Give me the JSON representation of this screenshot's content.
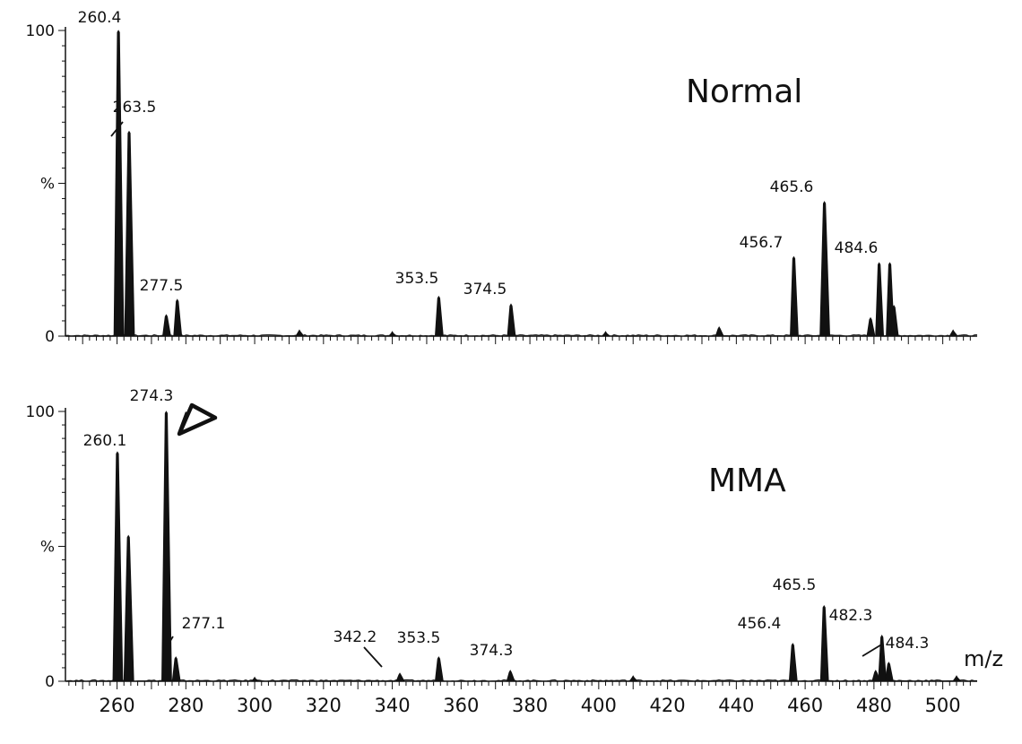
{
  "chart_data": [
    {
      "type": "mass-spectrum",
      "title": "Normal",
      "xlabel": "",
      "ylabel": "%",
      "yticks": [
        "0",
        "%",
        "100"
      ],
      "xlim": [
        245,
        510
      ],
      "ylim": [
        0,
        100
      ],
      "peaks": [
        {
          "mz": 260.4,
          "intensity": 100,
          "label": "260.4"
        },
        {
          "mz": 263.5,
          "intensity": 67,
          "label": "263.5"
        },
        {
          "mz": 274.3,
          "intensity": 7,
          "label": ""
        },
        {
          "mz": 277.5,
          "intensity": 12,
          "label": "277.5"
        },
        {
          "mz": 313.0,
          "intensity": 2,
          "label": ""
        },
        {
          "mz": 340.0,
          "intensity": 1.5,
          "label": ""
        },
        {
          "mz": 353.5,
          "intensity": 13,
          "label": "353.5"
        },
        {
          "mz": 374.5,
          "intensity": 10.5,
          "label": "374.5"
        },
        {
          "mz": 402.0,
          "intensity": 1.5,
          "label": ""
        },
        {
          "mz": 435.0,
          "intensity": 3,
          "label": ""
        },
        {
          "mz": 456.7,
          "intensity": 26,
          "label": "456.7"
        },
        {
          "mz": 465.6,
          "intensity": 44,
          "label": "465.6"
        },
        {
          "mz": 479.0,
          "intensity": 6,
          "label": ""
        },
        {
          "mz": 481.5,
          "intensity": 24,
          "label": ""
        },
        {
          "mz": 484.6,
          "intensity": 24,
          "label": "484.6"
        },
        {
          "mz": 485.8,
          "intensity": 10,
          "label": ""
        },
        {
          "mz": 503.0,
          "intensity": 2,
          "label": ""
        }
      ]
    },
    {
      "type": "mass-spectrum",
      "title": "MMA",
      "xlabel": "m/z",
      "ylabel": "%",
      "yticks": [
        "0",
        "%",
        "100"
      ],
      "xlim": [
        245,
        510
      ],
      "ylim": [
        0,
        100
      ],
      "xticks": [
        260,
        280,
        300,
        320,
        340,
        360,
        380,
        400,
        420,
        440,
        460,
        480,
        500
      ],
      "annotation": "arrowhead marker pointing to 274.3 peak",
      "peaks": [
        {
          "mz": 260.1,
          "intensity": 85,
          "label": "260.1"
        },
        {
          "mz": 263.3,
          "intensity": 54,
          "label": ""
        },
        {
          "mz": 274.3,
          "intensity": 100,
          "label": "274.3"
        },
        {
          "mz": 277.1,
          "intensity": 9,
          "label": "277.1"
        },
        {
          "mz": 300.0,
          "intensity": 1.5,
          "label": ""
        },
        {
          "mz": 342.2,
          "intensity": 3,
          "label": "342.2"
        },
        {
          "mz": 353.5,
          "intensity": 9,
          "label": "353.5"
        },
        {
          "mz": 374.3,
          "intensity": 4,
          "label": "374.3"
        },
        {
          "mz": 410.0,
          "intensity": 2,
          "label": ""
        },
        {
          "mz": 456.4,
          "intensity": 14,
          "label": "456.4"
        },
        {
          "mz": 465.5,
          "intensity": 28,
          "label": "465.5"
        },
        {
          "mz": 480.5,
          "intensity": 4,
          "label": ""
        },
        {
          "mz": 482.3,
          "intensity": 17,
          "label": "482.3"
        },
        {
          "mz": 484.3,
          "intensity": 7,
          "label": "484.3"
        },
        {
          "mz": 504.0,
          "intensity": 2,
          "label": ""
        }
      ]
    }
  ]
}
